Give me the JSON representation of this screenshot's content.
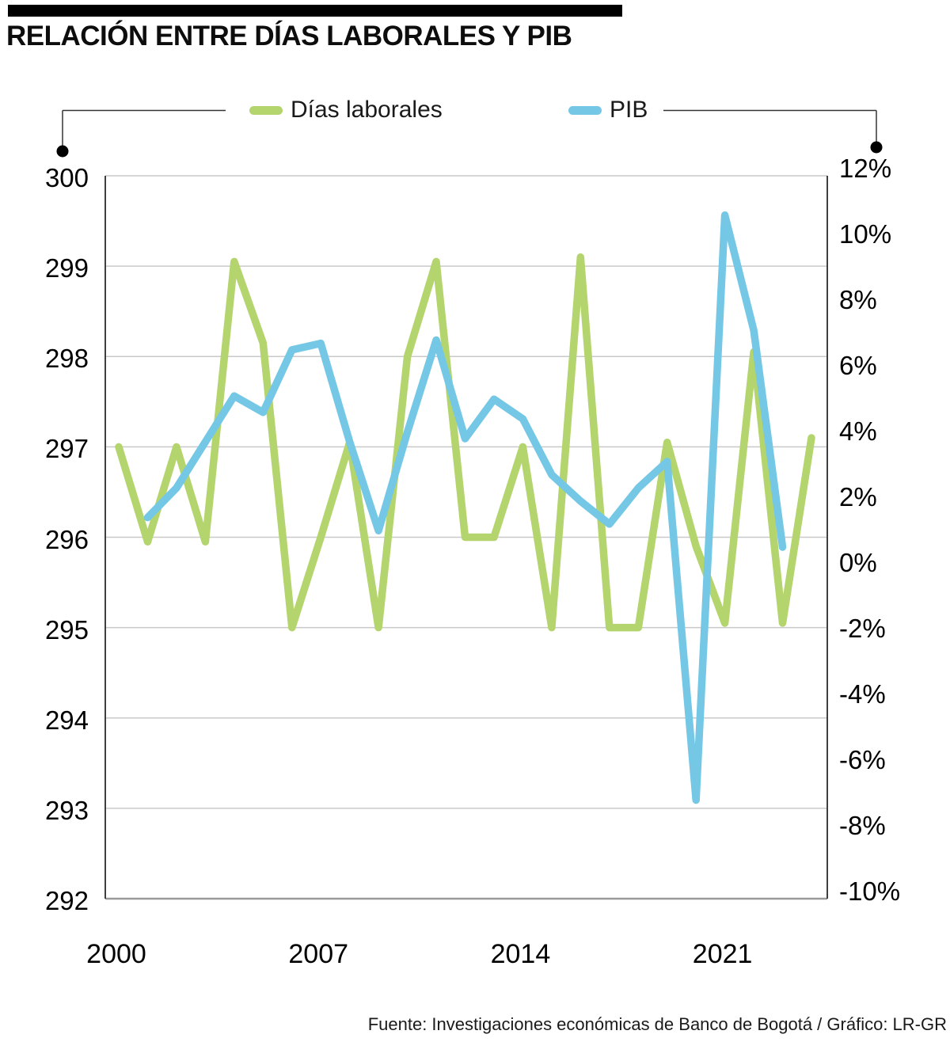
{
  "header": {
    "title": "RELACIÓN ENTRE DÍAS LABORALES Y PIB"
  },
  "legend": {
    "items": [
      {
        "label": "Días laborales",
        "color": "#b4d46e"
      },
      {
        "label": "PIB",
        "color": "#74c7e5"
      }
    ]
  },
  "chart_data": {
    "type": "line",
    "title": "RELACIÓN ENTRE DÍAS LABORALES Y PIB",
    "grid": true,
    "legend_position": "top",
    "left_axis": {
      "label": "Días laborales",
      "min": 292,
      "max": 300,
      "tick_values": [
        300,
        299,
        298,
        297,
        296,
        295,
        294,
        293,
        292
      ],
      "tick_labels": [
        "300",
        "299",
        "298",
        "297",
        "296",
        "295",
        "294",
        "293",
        "292"
      ]
    },
    "right_axis": {
      "label": "PIB",
      "min": -10,
      "max": 12,
      "tick_values": [
        12,
        10,
        8,
        6,
        4,
        2,
        0,
        -2,
        -4,
        -6,
        -8,
        -10
      ],
      "tick_labels": [
        "12%",
        "10%",
        "8%",
        "6%",
        "4%",
        "2%",
        "0%",
        "-2%",
        "-4%",
        "-6%",
        "-8%",
        "-10%"
      ]
    },
    "x_axis": {
      "range": [
        2000,
        2024
      ],
      "tick_years": [
        2000,
        2007,
        2014,
        2021
      ],
      "tick_labels": [
        "2000",
        "2007",
        "2014",
        "2021"
      ]
    },
    "series": [
      {
        "name": "Días laborales",
        "axis": "left",
        "color": "#b4d46e",
        "years": [
          2000,
          2001,
          2002,
          2003,
          2004,
          2005,
          2006,
          2007,
          2008,
          2009,
          2010,
          2011,
          2012,
          2013,
          2014,
          2015,
          2016,
          2017,
          2018,
          2019,
          2020,
          2021,
          2022,
          2023,
          2024
        ],
        "values": [
          297.0,
          295.95,
          297.0,
          295.95,
          299.05,
          298.15,
          295.0,
          296.0,
          297.05,
          295.0,
          298.0,
          299.05,
          296.0,
          296.0,
          297.0,
          295.0,
          299.1,
          295.0,
          295.0,
          297.05,
          295.9,
          295.05,
          298.05,
          295.05,
          297.1
        ]
      },
      {
        "name": "PIB",
        "axis": "right",
        "color": "#74c7e5",
        "years": [
          2001,
          2002,
          2003,
          2004,
          2005,
          2006,
          2007,
          2008,
          2009,
          2010,
          2011,
          2012,
          2013,
          2014,
          2015,
          2016,
          2017,
          2018,
          2019,
          2020,
          2021,
          2022,
          2023
        ],
        "values": [
          1.6,
          2.5,
          3.9,
          5.3,
          4.8,
          6.7,
          6.9,
          3.9,
          1.2,
          4.2,
          7.0,
          4.0,
          5.2,
          4.6,
          2.9,
          2.1,
          1.4,
          2.5,
          3.3,
          -7.0,
          10.8,
          7.3,
          0.7
        ]
      }
    ]
  },
  "footer": {
    "source": "Fuente: Investigaciones económicas de Banco de Bogotá / Gráfico: LR-GR"
  }
}
